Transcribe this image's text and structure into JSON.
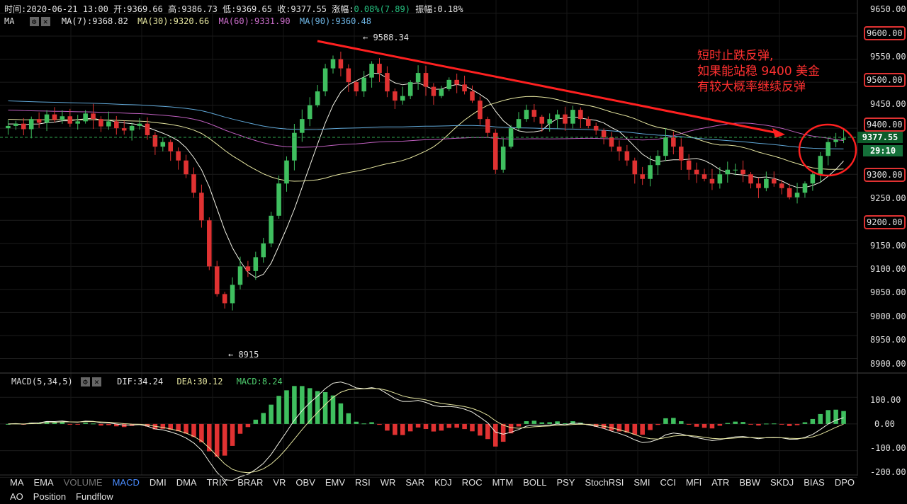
{
  "header": {
    "time_label": "时间:2020-06-21 13:00",
    "open_label": "开:9369.66",
    "high_label": "高:9386.73",
    "low_label": "低:9369.65",
    "close_label": "收:9377.55",
    "change_prefix": "涨幅:",
    "change_value": "0.08%(7.89)",
    "amplitude_label": "振幅:0.18%"
  },
  "ma_bar": {
    "name": "MA",
    "ma7": "MA(7):9368.82",
    "ma30": "MA(30):9320.66",
    "ma60": "MA(60):9331.90",
    "ma90": "MA(90):9360.48"
  },
  "macd_bar": {
    "name": "MACD(5,34,5)",
    "dif": "DIF:34.24",
    "dea": "DEA:30.12",
    "macd": "MACD:8.24"
  },
  "price_axis": [
    "9650.00",
    "9600.00",
    "9550.00",
    "9500.00",
    "9450.00",
    "9400.00",
    "9377.55",
    "9350.00",
    "9300.00",
    "9250.00",
    "9200.00",
    "9150.00",
    "9100.00",
    "9050.00",
    "9000.00",
    "8950.00",
    "8900.00"
  ],
  "macd_axis": [
    "100.00",
    "0.00",
    "-100.00",
    "-200.00"
  ],
  "last_price": "9377.55",
  "countdown": "29:10",
  "annotation": {
    "line1": "短时止跌反弹,",
    "line2": "如果能站稳 9400 美金",
    "line3": "有较大概率继续反弹"
  },
  "high_marker": "← 9588.34",
  "low_marker": "← 8915",
  "tabs": [
    "MA",
    "EMA",
    "VOLUME",
    "MACD",
    "DMI",
    "DMA",
    "TRIX",
    "BRAR",
    "VR",
    "OBV",
    "EMV",
    "RSI",
    "WR",
    "SAR",
    "KDJ",
    "ROC",
    "MTM",
    "BOLL",
    "PSY",
    "StochRSI",
    "SMI",
    "CCI",
    "MFI",
    "ATR",
    "BBW",
    "SKDJ",
    "BIAS",
    "DPO",
    "AO",
    "Position",
    "Fundflow"
  ],
  "colors": {
    "up": "#3fbf5f",
    "down": "#e03232",
    "ma7": "#f2f2e6",
    "ma30": "#e6e6a0",
    "ma60": "#c060c0",
    "ma90": "#60a8d8",
    "annotation": "#ff2a2a"
  },
  "chart_data": [
    {
      "type": "candlestick",
      "title": "",
      "ylim": [
        8890,
        9660
      ],
      "yticks": [
        9650,
        9600,
        9550,
        9500,
        9450,
        9400,
        9350,
        9300,
        9250,
        9200,
        9150,
        9100,
        9050,
        9000,
        8950,
        8900
      ],
      "grid": true,
      "last_close": 9377.55,
      "period_high": 9588.34,
      "period_low": 8915,
      "ma_values": {
        "ma7": 9368.82,
        "ma30": 9320.66,
        "ma60": 9331.9,
        "ma90": 9360.48
      },
      "closes": [
        9405,
        9410,
        9398,
        9420,
        9412,
        9430,
        9418,
        9426,
        9410,
        9415,
        9432,
        9420,
        9404,
        9415,
        9400,
        9395,
        9405,
        9410,
        9385,
        9360,
        9370,
        9350,
        9330,
        9300,
        9260,
        9200,
        9100,
        9040,
        9020,
        9060,
        9100,
        9090,
        9120,
        9150,
        9210,
        9280,
        9330,
        9390,
        9420,
        9450,
        9480,
        9530,
        9550,
        9530,
        9500,
        9480,
        9510,
        9540,
        9520,
        9480,
        9460,
        9470,
        9500,
        9520,
        9490,
        9470,
        9485,
        9505,
        9495,
        9480,
        9460,
        9420,
        9390,
        9310,
        9360,
        9400,
        9420,
        9440,
        9425,
        9410,
        9420,
        9430,
        9410,
        9440,
        9420,
        9405,
        9395,
        9380,
        9360,
        9350,
        9330,
        9300,
        9290,
        9320,
        9340,
        9380,
        9360,
        9330,
        9310,
        9300,
        9290,
        9280,
        9300,
        9310,
        9310,
        9300,
        9280,
        9270,
        9290,
        9280,
        9270,
        9250,
        9260,
        9280,
        9300,
        9340,
        9370,
        9375,
        9378
      ],
      "trendline": {
        "from": 9588.34,
        "to": 9380
      }
    },
    {
      "type": "bar",
      "title": "MACD(5,34,5)",
      "ylim": [
        -215,
        135
      ],
      "yticks": [
        100,
        0,
        -100,
        -200
      ],
      "series": [
        {
          "name": "DIF",
          "last": 34.24
        },
        {
          "name": "DEA",
          "last": 30.12
        },
        {
          "name": "MACD",
          "last": 8.24
        }
      ]
    }
  ]
}
